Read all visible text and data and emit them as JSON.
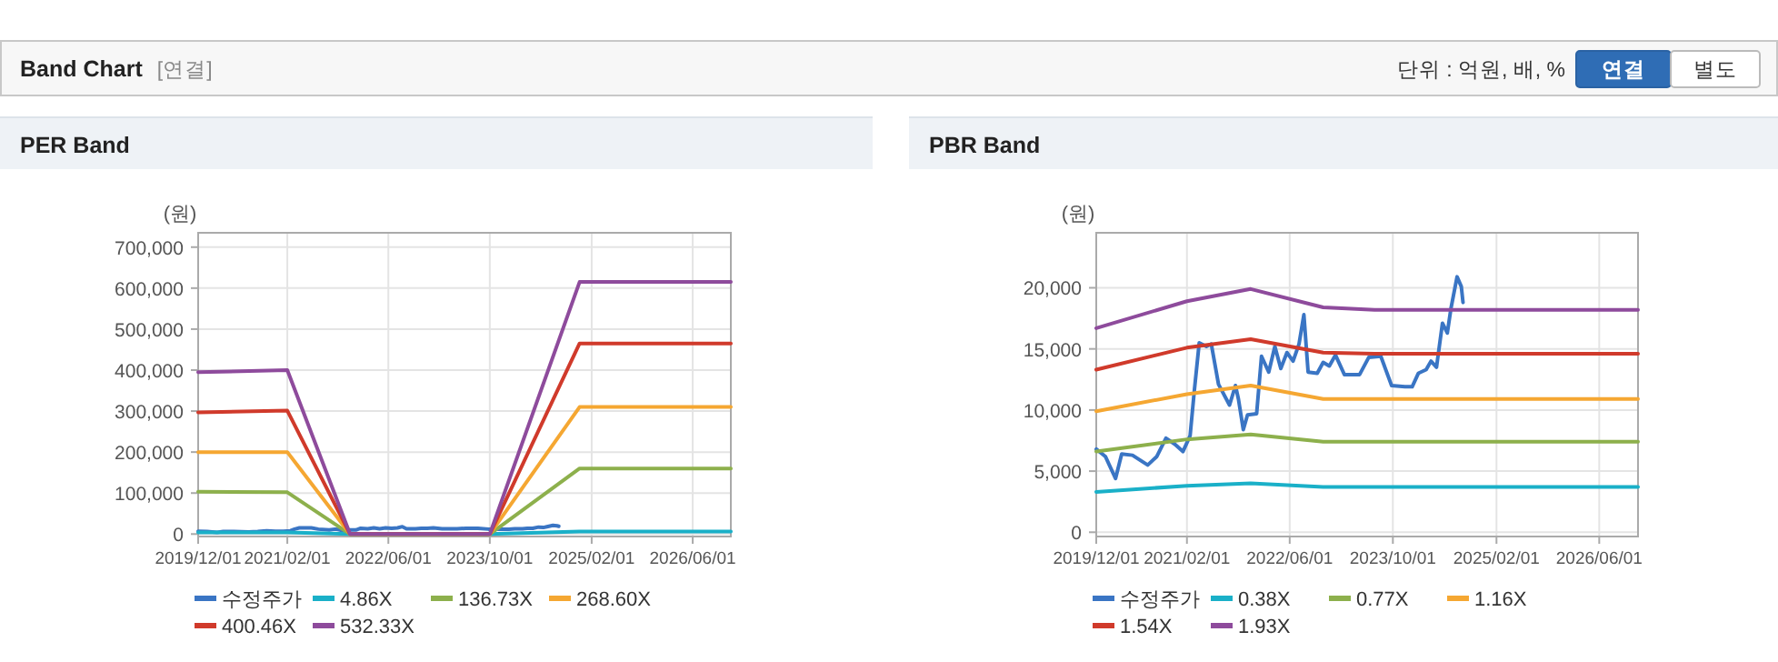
{
  "chart_data": [
    {
      "type": "other",
      "title": "Band Chart",
      "annotations": [
        "[연결]",
        "단위 : 억원, 배, %",
        "연결",
        "별도"
      ]
    },
    {
      "type": "line",
      "title": "PER Band",
      "ylabel": "(원)",
      "grid": true,
      "legend": "bottom",
      "xlim": [
        "2019-12-01",
        "2026-12-01"
      ],
      "xticks": [
        {
          "value": "2019-12-01",
          "label": "2019/12/01"
        },
        {
          "value": "2021-02-01",
          "label": "2021/02/01"
        },
        {
          "value": "2022-06-01",
          "label": "2022/06/01"
        },
        {
          "value": "2023-10-01",
          "label": "2023/10/01"
        },
        {
          "value": "2025-02-01",
          "label": "2025/02/01"
        },
        {
          "value": "2026-06-01",
          "label": "2026/06/01"
        }
      ],
      "ylim": [
        -6000,
        735000
      ],
      "yticks": [
        {
          "value": 0,
          "label": "0"
        },
        {
          "value": 100000,
          "label": "100,000"
        },
        {
          "value": 200000,
          "label": "200,000"
        },
        {
          "value": 300000,
          "label": "300,000"
        },
        {
          "value": 400000,
          "label": "400,000"
        },
        {
          "value": 500000,
          "label": "500,000"
        },
        {
          "value": 600000,
          "label": "600,000"
        },
        {
          "value": 700000,
          "label": "700,000"
        }
      ],
      "series": [
        {
          "name": "수정주가",
          "color": "#3a75c4",
          "x": [
            "2019-12-01",
            "2020-01-13",
            "2020-03-01",
            "2020-03-30",
            "2020-05-20",
            "2020-07-31",
            "2020-09-12",
            "2020-10-25",
            "2020-12-06",
            "2021-01-13",
            "2021-02-16",
            "2021-03-08",
            "2021-03-31",
            "2021-05-04",
            "2021-05-27",
            "2021-06-30",
            "2021-08-21",
            "2021-09-18",
            "2021-10-02",
            "2021-10-25",
            "2021-11-14",
            "2021-12-27",
            "2022-01-19",
            "2022-02-22",
            "2022-03-23",
            "2022-04-20",
            "2022-05-19",
            "2022-06-17",
            "2022-07-15",
            "2022-08-07",
            "2022-08-27",
            "2022-10-09",
            "2022-11-06",
            "2022-12-05",
            "2023-01-03",
            "2023-02-14",
            "2023-04-27",
            "2023-06-09",
            "2023-08-05",
            "2023-09-25",
            "2023-11-27",
            "2023-12-31",
            "2024-01-29",
            "2024-03-06",
            "2024-03-29",
            "2024-04-24",
            "2024-05-22",
            "2024-06-14",
            "2024-07-01",
            "2024-07-30",
            "2024-08-19",
            "2024-08-27"
          ],
          "values": [
            7000,
            6000,
            4000,
            6000,
            6000,
            5000,
            6000,
            8000,
            7000,
            7000,
            8000,
            12000,
            15000,
            15000,
            15000,
            12000,
            10000,
            12000,
            11000,
            8000,
            10000,
            10000,
            14000,
            13000,
            15000,
            13000,
            15000,
            14000,
            15000,
            18000,
            13000,
            13000,
            14000,
            14000,
            15000,
            13000,
            13000,
            14000,
            14000,
            12000,
            12000,
            12000,
            13000,
            13000,
            14000,
            14000,
            17000,
            16000,
            18000,
            21000,
            20000,
            19000
          ]
        },
        {
          "name": "4.86X",
          "color": "#1ab0c8",
          "x": [
            "2019-12-01",
            "2021-02-01",
            "2021-11-29",
            "2023-10-01",
            "2024-12-05",
            "2026-12-01"
          ],
          "values": [
            4000,
            4000,
            0,
            0,
            6000,
            6000
          ]
        },
        {
          "name": "136.73X",
          "color": "#8db04c",
          "x": [
            "2019-12-01",
            "2021-02-01",
            "2021-11-29",
            "2023-10-01",
            "2024-12-05",
            "2026-12-01"
          ],
          "values": [
            103000,
            102000,
            0,
            0,
            160000,
            160000
          ]
        },
        {
          "name": "268.60X",
          "color": "#f5a732",
          "x": [
            "2019-12-01",
            "2021-02-01",
            "2021-11-29",
            "2023-10-01",
            "2024-12-05",
            "2026-12-01"
          ],
          "values": [
            200000,
            200000,
            0,
            0,
            310000,
            310000
          ]
        },
        {
          "name": "400.46X",
          "color": "#d03a2b",
          "x": [
            "2019-12-01",
            "2021-02-01",
            "2021-11-29",
            "2023-10-01",
            "2024-12-05",
            "2026-12-01"
          ],
          "values": [
            297000,
            301000,
            0,
            0,
            465000,
            465000
          ]
        },
        {
          "name": "532.33X",
          "color": "#8e4b9c",
          "x": [
            "2019-12-01",
            "2021-02-01",
            "2021-11-29",
            "2023-10-01",
            "2024-12-05",
            "2026-12-01"
          ],
          "values": [
            395000,
            400000,
            0,
            0,
            615000,
            615000
          ]
        }
      ]
    },
    {
      "type": "line",
      "title": "PBR Band",
      "ylabel": "(원)",
      "grid": true,
      "legend": "bottom",
      "xlim": [
        "2019-12-01",
        "2026-12-01"
      ],
      "xticks": [
        {
          "value": "2019-12-01",
          "label": "2019/12/01"
        },
        {
          "value": "2021-02-01",
          "label": "2021/02/01"
        },
        {
          "value": "2022-06-01",
          "label": "2022/06/01"
        },
        {
          "value": "2023-10-01",
          "label": "2023/10/01"
        },
        {
          "value": "2025-02-01",
          "label": "2025/02/01"
        },
        {
          "value": "2026-06-01",
          "label": "2026/06/01"
        }
      ],
      "ylim": [
        -350,
        24500
      ],
      "yticks": [
        {
          "value": 0,
          "label": "0"
        },
        {
          "value": 5000,
          "label": "5,000"
        },
        {
          "value": 10000,
          "label": "10,000"
        },
        {
          "value": 15000,
          "label": "15,000"
        },
        {
          "value": 20000,
          "label": "20,000"
        }
      ],
      "series": [
        {
          "name": "수정주가",
          "color": "#3a75c4",
          "x": [
            "2019-12-01",
            "2020-01-13",
            "2020-03-01",
            "2020-03-30",
            "2020-05-20",
            "2020-07-31",
            "2020-09-12",
            "2020-10-25",
            "2020-12-06",
            "2021-01-13",
            "2021-02-16",
            "2021-03-08",
            "2021-03-31",
            "2021-05-04",
            "2021-05-27",
            "2021-06-30",
            "2021-08-21",
            "2021-09-18",
            "2021-10-02",
            "2021-10-25",
            "2021-11-14",
            "2021-12-27",
            "2022-01-19",
            "2022-02-22",
            "2022-03-23",
            "2022-04-20",
            "2022-05-19",
            "2022-06-17",
            "2022-07-15",
            "2022-08-07",
            "2022-08-27",
            "2022-10-09",
            "2022-11-06",
            "2022-12-05",
            "2023-01-03",
            "2023-02-14",
            "2023-04-27",
            "2023-06-09",
            "2023-08-05",
            "2023-09-25",
            "2023-11-27",
            "2023-12-31",
            "2024-01-29",
            "2024-03-06",
            "2024-03-29",
            "2024-04-24",
            "2024-05-22",
            "2024-06-14",
            "2024-07-01",
            "2024-07-30",
            "2024-08-19",
            "2024-08-27"
          ],
          "values": [
            6800,
            6200,
            4400,
            6400,
            6300,
            5500,
            6200,
            7700,
            7200,
            6600,
            7900,
            11600,
            15500,
            15200,
            15400,
            12100,
            10400,
            12000,
            10900,
            8400,
            9600,
            9700,
            14400,
            13100,
            15200,
            13400,
            14700,
            14000,
            15400,
            17800,
            13100,
            13000,
            13900,
            13600,
            14500,
            12900,
            12900,
            14300,
            14400,
            12000,
            11900,
            11900,
            13000,
            13300,
            14000,
            13500,
            17100,
            16300,
            18300,
            20900,
            20100,
            18800
          ]
        },
        {
          "name": "0.38X",
          "color": "#1ab0c8",
          "x": [
            "2019-12-01",
            "2021-02-01",
            "2021-11-29",
            "2022-11-06",
            "2023-07-07",
            "2026-12-01"
          ],
          "values": [
            3300,
            3800,
            4000,
            3700,
            3700,
            3700
          ]
        },
        {
          "name": "0.77X",
          "color": "#8db04c",
          "x": [
            "2019-12-01",
            "2021-02-01",
            "2021-11-29",
            "2022-11-06",
            "2023-07-07",
            "2026-12-01"
          ],
          "values": [
            6600,
            7600,
            8000,
            7400,
            7400,
            7400
          ]
        },
        {
          "name": "1.16X",
          "color": "#f5a732",
          "x": [
            "2019-12-01",
            "2021-02-01",
            "2021-11-29",
            "2022-11-06",
            "2023-07-07",
            "2026-12-01"
          ],
          "values": [
            9900,
            11300,
            12000,
            10900,
            10900,
            10900
          ]
        },
        {
          "name": "1.54X",
          "color": "#d03a2b",
          "x": [
            "2019-12-01",
            "2021-02-01",
            "2021-11-29",
            "2022-11-06",
            "2023-07-07",
            "2026-12-01"
          ],
          "values": [
            13300,
            15100,
            15800,
            14700,
            14600,
            14600
          ]
        },
        {
          "name": "1.93X",
          "color": "#8e4b9c",
          "x": [
            "2019-12-01",
            "2021-02-01",
            "2021-11-29",
            "2022-11-06",
            "2023-07-07",
            "2026-12-01"
          ],
          "values": [
            16700,
            18900,
            19900,
            18400,
            18200,
            18200
          ]
        }
      ]
    }
  ]
}
